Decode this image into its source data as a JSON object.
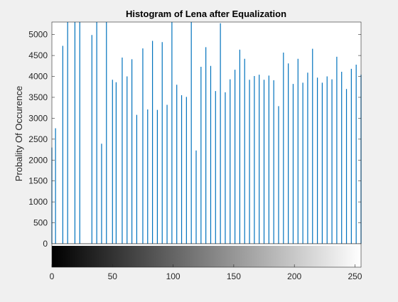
{
  "chart_data": {
    "type": "bar",
    "title": "Histogram of Lena after Equalization",
    "xlabel": "",
    "ylabel": "Probality Of Occurence",
    "xlim": [
      0,
      255
    ],
    "ylim": [
      0,
      5300
    ],
    "xticks": [
      0,
      50,
      100,
      150,
      200,
      250
    ],
    "yticks": [
      0,
      500,
      1000,
      1500,
      2000,
      2500,
      3000,
      3500,
      4000,
      4500,
      5000
    ],
    "grid": false,
    "legend": "none",
    "colorbar": {
      "type": "grayscale",
      "from": 0,
      "to": 255
    },
    "bar_color": "#0072bd",
    "x": [
      0,
      3,
      9,
      13,
      19,
      23,
      33,
      37,
      41,
      45,
      50,
      53,
      58,
      62,
      66,
      70,
      75,
      79,
      83,
      87,
      91,
      95,
      99,
      103,
      107,
      111,
      115,
      119,
      123,
      127,
      131,
      135,
      139,
      143,
      147,
      151,
      155,
      159,
      163,
      167,
      171,
      175,
      179,
      183,
      187,
      191,
      195,
      199,
      203,
      207,
      211,
      215,
      219,
      223,
      227,
      231,
      235,
      239,
      243,
      247,
      251,
      255
    ],
    "values": [
      2300,
      2760,
      4730,
      5300,
      5300,
      5300,
      4990,
      5300,
      2390,
      5300,
      3920,
      3860,
      4450,
      4000,
      4410,
      3080,
      4670,
      3210,
      4850,
      3200,
      4820,
      3320,
      5300,
      3800,
      3550,
      3510,
      5300,
      2230,
      4230,
      4700,
      4250,
      3650,
      5270,
      3620,
      3930,
      4160,
      4640,
      4420,
      3920,
      4010,
      4040,
      3920,
      4020,
      3910,
      3290,
      4570,
      4310,
      3820,
      4420,
      3850,
      4090,
      4660,
      3970,
      3850,
      4000,
      3930,
      4470,
      4110,
      3700,
      4180,
      4280,
      4040
    ]
  }
}
